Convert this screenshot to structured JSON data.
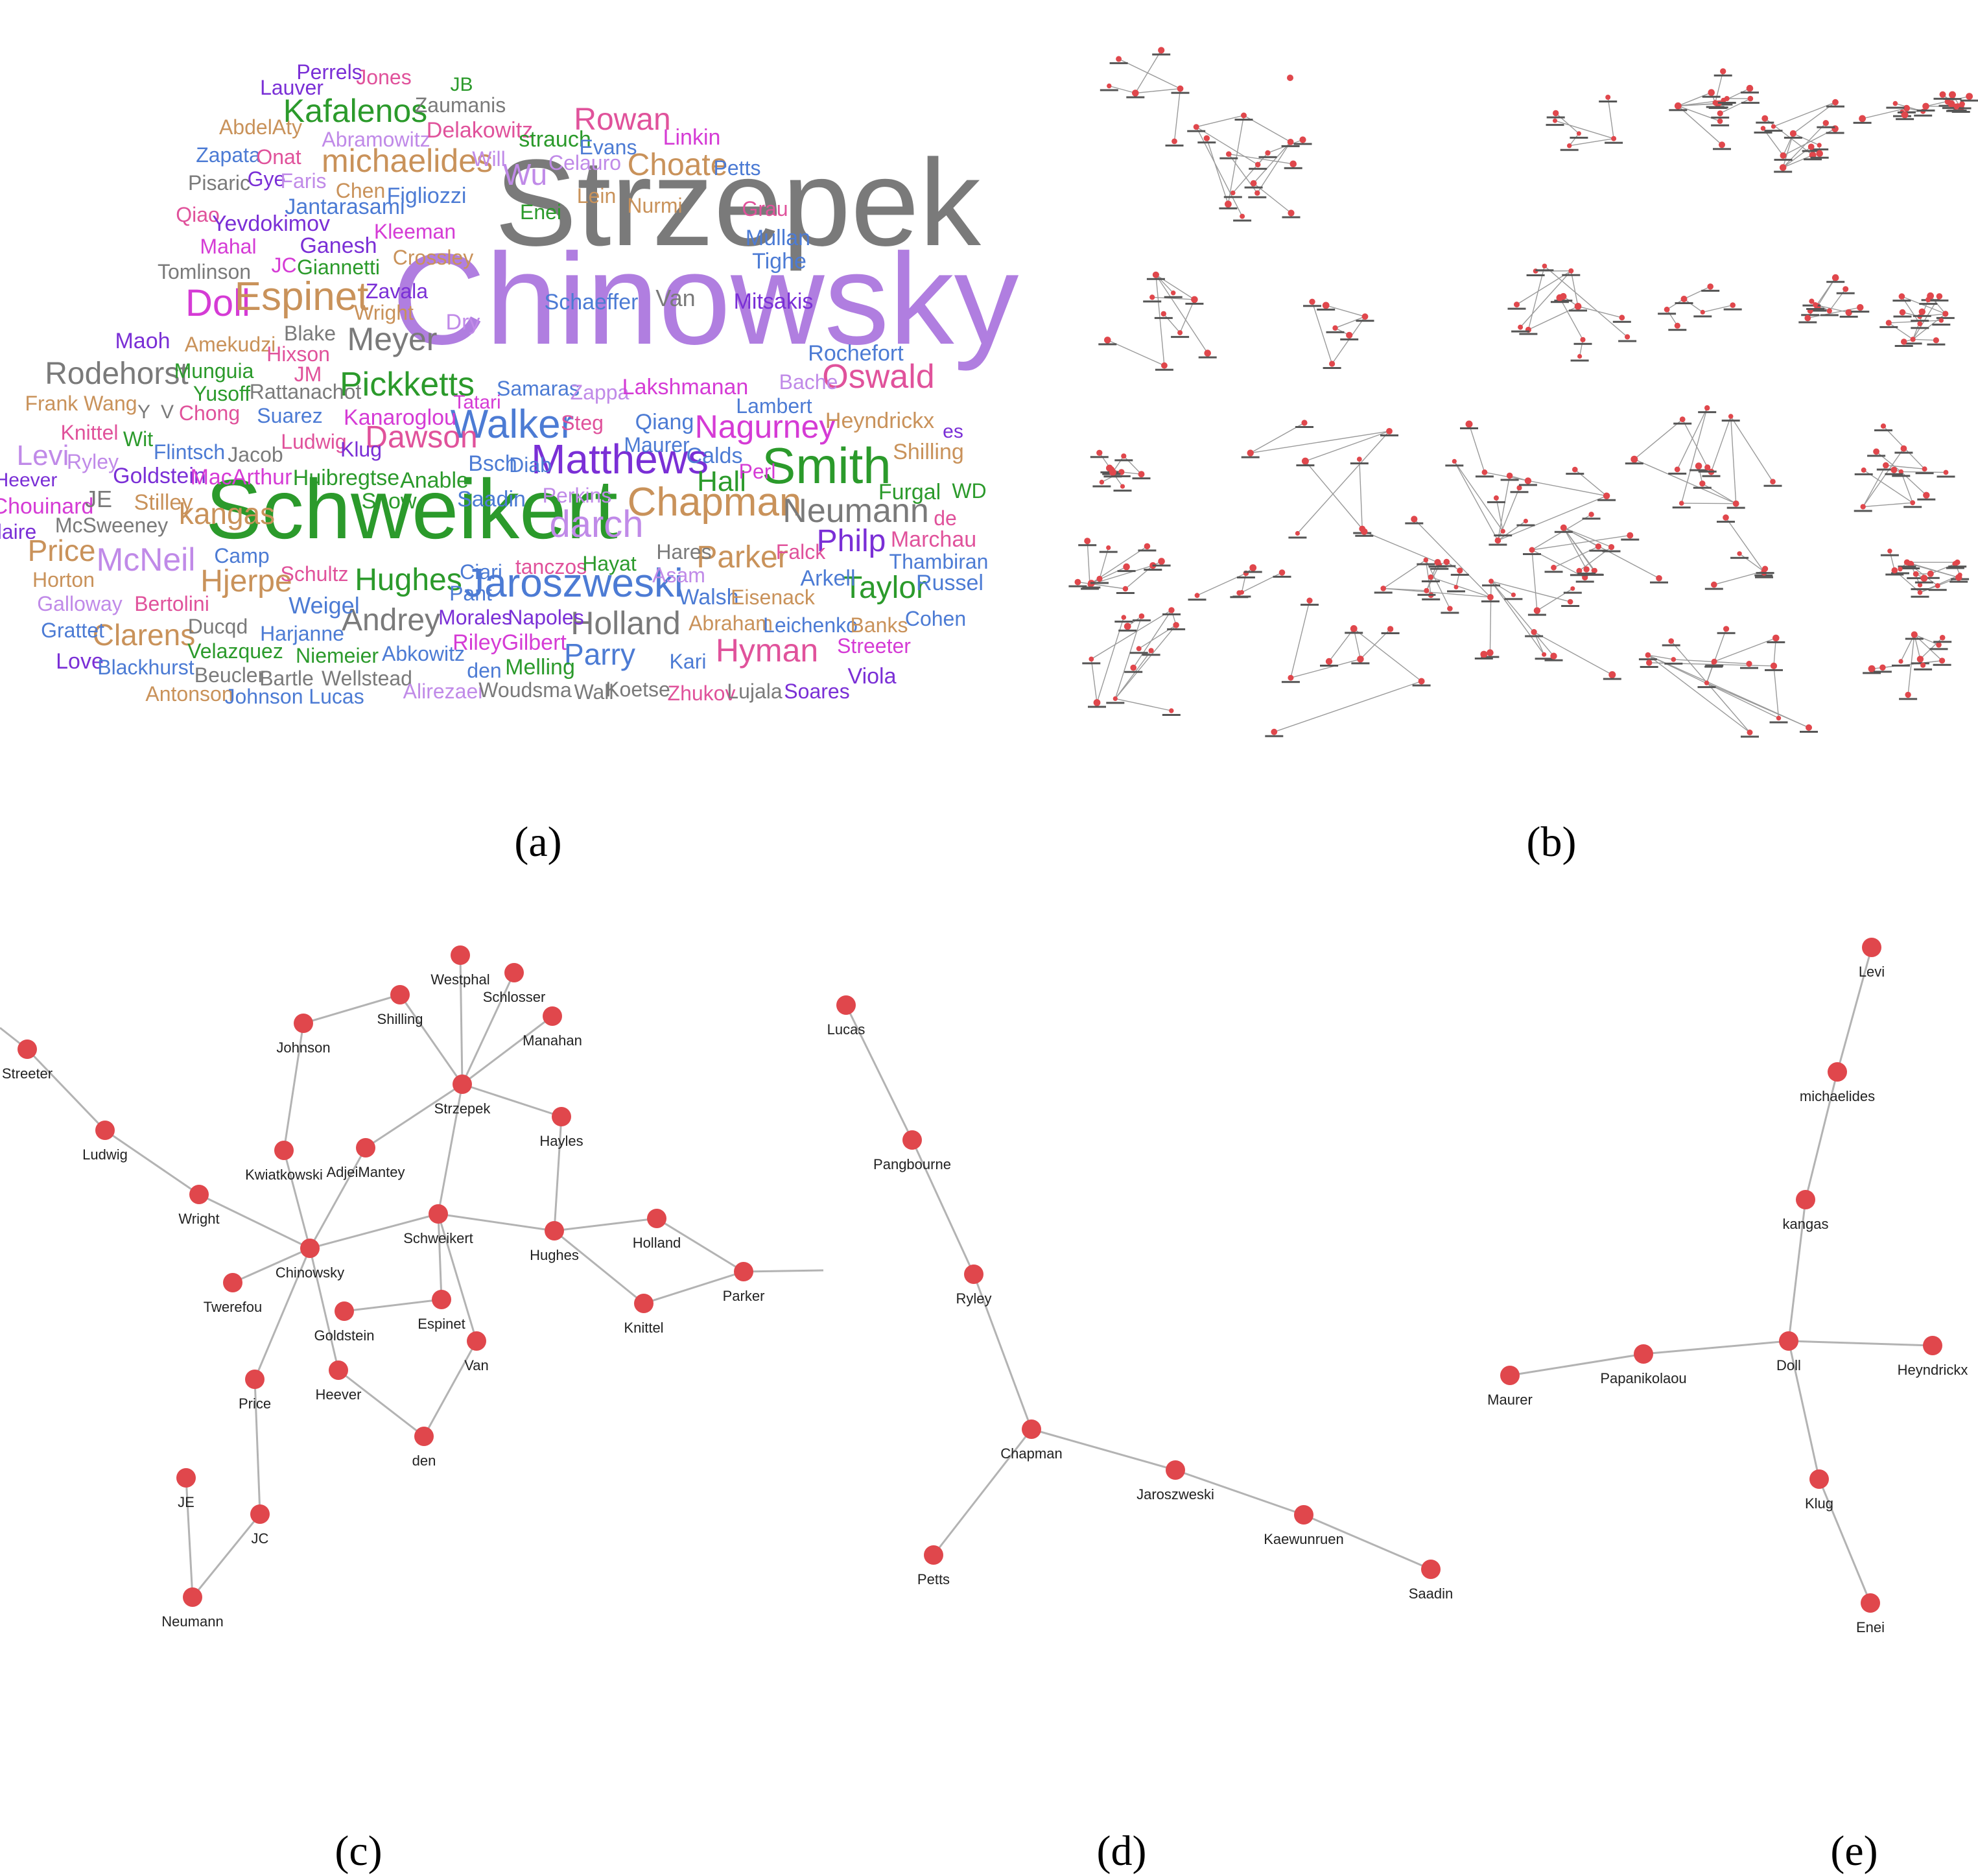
{
  "captions": {
    "a": "(a)",
    "b": "(b)",
    "c": "(c)",
    "d": "(d)",
    "e": "(e)"
  },
  "colors": {
    "node": "#e0474c",
    "edge": "#b3b3b3",
    "label": "#222222"
  },
  "word_cloud": {
    "palette": {
      "gray": "#7a7a7a",
      "violet": "#b07ee0",
      "green": "#2b9a2b",
      "magenta": "#d53bd5",
      "tan": "#c9925a",
      "blue": "#4c7bd4",
      "purple": "#7a2fd6",
      "pink": "#e0529b",
      "lavender": "#c08ae8"
    },
    "words": [
      {
        "t": "Strzepek",
        "c": "gray",
        "s": 1.0
      },
      {
        "t": "Chinowsky",
        "c": "violet",
        "s": 1.0
      },
      {
        "t": "Schweikert",
        "c": "green",
        "s": 1.0
      },
      {
        "t": "Matthews",
        "c": "purple",
        "s": 1
      },
      {
        "t": "Smith",
        "c": "green",
        "s": 1
      },
      {
        "t": "Walker",
        "c": "blue",
        "s": 1
      },
      {
        "t": "Jaroszweski",
        "c": "blue",
        "s": 1
      },
      {
        "t": "Chapman",
        "c": "tan",
        "s": 1
      },
      {
        "t": "Neumann",
        "c": "gray",
        "s": 1
      },
      {
        "t": "darch",
        "c": "lavender",
        "s": 1
      },
      {
        "t": "Doll",
        "c": "magenta",
        "s": 1
      },
      {
        "t": "Espinet",
        "c": "tan",
        "s": 1
      },
      {
        "t": "Pickketts",
        "c": "green",
        "s": 1
      },
      {
        "t": "Dawson",
        "c": "pink",
        "s": 1
      },
      {
        "t": "Nagurney",
        "c": "magenta",
        "s": 1
      },
      {
        "t": "Oswald",
        "c": "pink",
        "s": 1
      },
      {
        "t": "Meyer",
        "c": "gray",
        "s": 1
      },
      {
        "t": "michaelides",
        "c": "tan",
        "s": 1
      },
      {
        "t": "Kafalenos",
        "c": "green",
        "s": 1
      },
      {
        "t": "Rowan",
        "c": "pink",
        "s": 1
      },
      {
        "t": "Choate",
        "c": "tan",
        "s": 1
      },
      {
        "t": "Rodehorst",
        "c": "gray",
        "s": 1
      },
      {
        "t": "Hjerpe",
        "c": "tan",
        "s": 1
      },
      {
        "t": "Hughes",
        "c": "green",
        "s": 1
      },
      {
        "t": "Philp",
        "c": "purple",
        "s": 1
      },
      {
        "t": "Parker",
        "c": "tan",
        "s": 1
      },
      {
        "t": "Taylor",
        "c": "green",
        "s": 1
      },
      {
        "t": "Holland",
        "c": "gray",
        "s": 1
      },
      {
        "t": "Hyman",
        "c": "pink",
        "s": 1
      },
      {
        "t": "Parry",
        "c": "blue",
        "s": 1
      },
      {
        "t": "Andrey",
        "c": "gray",
        "s": 1
      },
      {
        "t": "McNeil",
        "c": "lavender",
        "s": 1
      },
      {
        "t": "Clarens",
        "c": "tan",
        "s": 1
      },
      {
        "t": "kangas",
        "c": "tan",
        "s": 1
      },
      {
        "t": "Price",
        "c": "tan",
        "s": 1
      },
      {
        "t": "Wu",
        "c": "lavender",
        "s": 1
      },
      {
        "t": "Levi",
        "c": "lavender",
        "s": 1
      },
      {
        "t": "Hall",
        "c": "green",
        "s": 1
      },
      {
        "t": "Van",
        "c": "gray",
        "s": 1
      },
      {
        "t": "Jones",
        "c": "pink",
        "s": 1
      },
      {
        "t": "Perrels",
        "c": "purple",
        "s": 1
      },
      {
        "t": "Lauver",
        "c": "purple",
        "s": 1
      },
      {
        "t": "JB",
        "c": "green",
        "s": 1
      },
      {
        "t": "Zaumanis",
        "c": "gray",
        "s": 1
      },
      {
        "t": "AbdelAty",
        "c": "tan",
        "s": 1
      },
      {
        "t": "Abramowitz",
        "c": "lavender",
        "s": 1
      },
      {
        "t": "Delakowitz",
        "c": "pink",
        "s": 1
      },
      {
        "t": "strauch",
        "c": "green",
        "s": 1
      },
      {
        "t": "Evans",
        "c": "blue",
        "s": 1
      },
      {
        "t": "Linkin",
        "c": "magenta",
        "s": 1
      },
      {
        "t": "Zapata",
        "c": "blue",
        "s": 1
      },
      {
        "t": "Onat",
        "c": "pink",
        "s": 1
      },
      {
        "t": "Will",
        "c": "lavender",
        "s": 1
      },
      {
        "t": "Celauro",
        "c": "lavender",
        "s": 1
      },
      {
        "t": "Petts",
        "c": "blue",
        "s": 1
      },
      {
        "t": "Pisaric",
        "c": "gray",
        "s": 1
      },
      {
        "t": "Gye",
        "c": "purple",
        "s": 1
      },
      {
        "t": "Faris",
        "c": "lavender",
        "s": 1
      },
      {
        "t": "Chen",
        "c": "tan",
        "s": 1
      },
      {
        "t": "Figliozzi",
        "c": "blue",
        "s": 1
      },
      {
        "t": "Lein",
        "c": "tan",
        "s": 1
      },
      {
        "t": "Nurmi",
        "c": "tan",
        "s": 1
      },
      {
        "t": "Grau",
        "c": "pink",
        "s": 1
      },
      {
        "t": "Qiao",
        "c": "pink",
        "s": 1
      },
      {
        "t": "Yevdokimov",
        "c": "purple",
        "s": 1
      },
      {
        "t": "Jantarasami",
        "c": "blue",
        "s": 1
      },
      {
        "t": "Enei",
        "c": "green",
        "s": 1
      },
      {
        "t": "Mullan",
        "c": "blue",
        "s": 1
      },
      {
        "t": "Mahal",
        "c": "magenta",
        "s": 1
      },
      {
        "t": "Ganesh",
        "c": "purple",
        "s": 1
      },
      {
        "t": "Kleeman",
        "c": "magenta",
        "s": 1
      },
      {
        "t": "Tighe",
        "c": "blue",
        "s": 1
      },
      {
        "t": "Tomlinson",
        "c": "gray",
        "s": 1
      },
      {
        "t": "JC",
        "c": "magenta",
        "s": 1
      },
      {
        "t": "Giannetti",
        "c": "green",
        "s": 1
      },
      {
        "t": "Crossley",
        "c": "tan",
        "s": 1
      },
      {
        "t": "Zavala",
        "c": "purple",
        "s": 1
      },
      {
        "t": "Wright",
        "c": "tan",
        "s": 1
      },
      {
        "t": "Schaeffer",
        "c": "blue",
        "s": 1
      },
      {
        "t": "Mitsakis",
        "c": "purple",
        "s": 1
      },
      {
        "t": "Maoh",
        "c": "purple",
        "s": 1
      },
      {
        "t": "Amekudzi",
        "c": "tan",
        "s": 1
      },
      {
        "t": "Blake",
        "c": "gray",
        "s": 1
      },
      {
        "t": "Dry",
        "c": "lavender",
        "s": 1
      },
      {
        "t": "Hixson",
        "c": "pink",
        "s": 1
      },
      {
        "t": "Rochefort",
        "c": "blue",
        "s": 1
      },
      {
        "t": "Munguia",
        "c": "green",
        "s": 1
      },
      {
        "t": "JM",
        "c": "pink",
        "s": 1
      },
      {
        "t": "Yusoff",
        "c": "green",
        "s": 1
      },
      {
        "t": "Rattanachot",
        "c": "gray",
        "s": 1
      },
      {
        "t": "Tatari",
        "c": "magenta",
        "s": 1
      },
      {
        "t": "Samaras",
        "c": "blue",
        "s": 1
      },
      {
        "t": "Zappa",
        "c": "lavender",
        "s": 1
      },
      {
        "t": "Lakshmanan",
        "c": "magenta",
        "s": 1
      },
      {
        "t": "Bache",
        "c": "lavender",
        "s": 1
      },
      {
        "t": "Frank Wang",
        "c": "tan",
        "s": 1
      },
      {
        "t": "Y",
        "c": "gray",
        "s": 1
      },
      {
        "t": "V",
        "c": "gray",
        "s": 1
      },
      {
        "t": "Chong",
        "c": "pink",
        "s": 1
      },
      {
        "t": "Suarez",
        "c": "blue",
        "s": 1
      },
      {
        "t": "Kanaroglou",
        "c": "magenta",
        "s": 1
      },
      {
        "t": "Steg",
        "c": "pink",
        "s": 1
      },
      {
        "t": "Qiang",
        "c": "blue",
        "s": 1
      },
      {
        "t": "Lambert",
        "c": "blue",
        "s": 1
      },
      {
        "t": "Heyndrickx",
        "c": "tan",
        "s": 1
      },
      {
        "t": "Knittel",
        "c": "pink",
        "s": 1
      },
      {
        "t": "Wit",
        "c": "green",
        "s": 1
      },
      {
        "t": "Flintsch",
        "c": "blue",
        "s": 1
      },
      {
        "t": "Jacob",
        "c": "gray",
        "s": 1
      },
      {
        "t": "Ludwig",
        "c": "pink",
        "s": 1
      },
      {
        "t": "Klug",
        "c": "purple",
        "s": 1
      },
      {
        "t": "Maurer",
        "c": "blue",
        "s": 1
      },
      {
        "t": "Calds",
        "c": "blue",
        "s": 1
      },
      {
        "t": "es",
        "c": "purple",
        "s": 1
      },
      {
        "t": "Shilling",
        "c": "tan",
        "s": 1
      },
      {
        "t": "Ryley",
        "c": "lavender",
        "s": 1
      },
      {
        "t": "Bsch",
        "c": "blue",
        "s": 1
      },
      {
        "t": "Diab",
        "c": "blue",
        "s": 1
      },
      {
        "t": "Perl",
        "c": "magenta",
        "s": 1
      },
      {
        "t": "Heever",
        "c": "purple",
        "s": 1
      },
      {
        "t": "Goldstein",
        "c": "purple",
        "s": 1
      },
      {
        "t": "MacArthur",
        "c": "magenta",
        "s": 1
      },
      {
        "t": "Huibregtse",
        "c": "green",
        "s": 1
      },
      {
        "t": "Anable",
        "c": "green",
        "s": 1
      },
      {
        "t": "Furgal",
        "c": "green",
        "s": 1
      },
      {
        "t": "WD",
        "c": "green",
        "s": 1
      },
      {
        "t": "Chouinard",
        "c": "magenta",
        "s": 1
      },
      {
        "t": "JE",
        "c": "gray",
        "s": 1
      },
      {
        "t": "Stilley",
        "c": "tan",
        "s": 1
      },
      {
        "t": "Snow",
        "c": "green",
        "s": 1
      },
      {
        "t": "Saadin",
        "c": "blue",
        "s": 1
      },
      {
        "t": "Perkins",
        "c": "lavender",
        "s": 1
      },
      {
        "t": "de",
        "c": "pink",
        "s": 1
      },
      {
        "t": "laire",
        "c": "purple",
        "s": 1
      },
      {
        "t": "McSweeney",
        "c": "gray",
        "s": 1
      },
      {
        "t": "Marchau",
        "c": "pink",
        "s": 1
      },
      {
        "t": "Camp",
        "c": "blue",
        "s": 1
      },
      {
        "t": "Hares",
        "c": "gray",
        "s": 1
      },
      {
        "t": "Falck",
        "c": "pink",
        "s": 1
      },
      {
        "t": "Thambiran",
        "c": "blue",
        "s": 1
      },
      {
        "t": "Horton",
        "c": "tan",
        "s": 1
      },
      {
        "t": "Schultz",
        "c": "pink",
        "s": 1
      },
      {
        "t": "Ciari",
        "c": "blue",
        "s": 1
      },
      {
        "t": "Pant",
        "c": "blue",
        "s": 1
      },
      {
        "t": "tanczos",
        "c": "pink",
        "s": 1
      },
      {
        "t": "Hayat",
        "c": "green",
        "s": 1
      },
      {
        "t": "Asam",
        "c": "lavender",
        "s": 1
      },
      {
        "t": "Arkell",
        "c": "blue",
        "s": 1
      },
      {
        "t": "Russel",
        "c": "blue",
        "s": 1
      },
      {
        "t": "Galloway",
        "c": "lavender",
        "s": 1
      },
      {
        "t": "Bertolini",
        "c": "pink",
        "s": 1
      },
      {
        "t": "Weigel",
        "c": "blue",
        "s": 1
      },
      {
        "t": "Walsh",
        "c": "blue",
        "s": 1
      },
      {
        "t": "Eisenack",
        "c": "tan",
        "s": 1
      },
      {
        "t": "Grattet",
        "c": "blue",
        "s": 1
      },
      {
        "t": "Ducqd",
        "c": "gray",
        "s": 1
      },
      {
        "t": "Morales",
        "c": "purple",
        "s": 1
      },
      {
        "t": "Napoles",
        "c": "purple",
        "s": 1
      },
      {
        "t": "Abraham",
        "c": "tan",
        "s": 1
      },
      {
        "t": "Leichenko",
        "c": "blue",
        "s": 1
      },
      {
        "t": "Banks",
        "c": "tan",
        "s": 1
      },
      {
        "t": "Cohen",
        "c": "blue",
        "s": 1
      },
      {
        "t": "Love",
        "c": "purple",
        "s": 1
      },
      {
        "t": "Blackhurst",
        "c": "blue",
        "s": 1
      },
      {
        "t": "Velazquez",
        "c": "green",
        "s": 1
      },
      {
        "t": "Harjanne",
        "c": "blue",
        "s": 1
      },
      {
        "t": "Niemeier",
        "c": "green",
        "s": 1
      },
      {
        "t": "Abkowitz",
        "c": "blue",
        "s": 1
      },
      {
        "t": "RileyGilbert",
        "c": "magenta",
        "s": 1
      },
      {
        "t": "Kari",
        "c": "blue",
        "s": 1
      },
      {
        "t": "Streeter",
        "c": "magenta",
        "s": 1
      },
      {
        "t": "Beucler",
        "c": "gray",
        "s": 1
      },
      {
        "t": "Bartle",
        "c": "gray",
        "s": 1
      },
      {
        "t": "Wellstead",
        "c": "gray",
        "s": 1
      },
      {
        "t": "den",
        "c": "blue",
        "s": 1
      },
      {
        "t": "Melling",
        "c": "green",
        "s": 1
      },
      {
        "t": "Viola",
        "c": "purple",
        "s": 1
      },
      {
        "t": "Antonson",
        "c": "tan",
        "s": 1
      },
      {
        "t": "Johnson",
        "c": "blue",
        "s": 1
      },
      {
        "t": "Lucas",
        "c": "blue",
        "s": 1
      },
      {
        "t": "Alirezaei",
        "c": "lavender",
        "s": 1
      },
      {
        "t": "Woudsma",
        "c": "gray",
        "s": 1
      },
      {
        "t": "Wall",
        "c": "gray",
        "s": 1
      },
      {
        "t": "Koetse",
        "c": "gray",
        "s": 1
      },
      {
        "t": "Zhukov",
        "c": "pink",
        "s": 1
      },
      {
        "t": "Lujala",
        "c": "gray",
        "s": 1
      },
      {
        "t": "Soares",
        "c": "purple",
        "s": 1
      }
    ]
  },
  "graph_c": {
    "nodes": [
      "Streeter",
      "Ludwig",
      "Wright",
      "Johnson",
      "Shilling",
      "Westphal",
      "Schlosser",
      "Manahan",
      "Strzepek",
      "Hayles",
      "Kwiatkowski",
      "AdjeiMantey",
      "Chinowsky",
      "Twerefou",
      "Schweikert",
      "Hughes",
      "Holland",
      "Parker",
      "Knittel",
      "Goldstein",
      "Espinet",
      "Van",
      "Heever",
      "den",
      "Price",
      "JE",
      "JC",
      "Neumann"
    ],
    "edges": [
      [
        "Streeter",
        "Ludwig"
      ],
      [
        "Ludwig",
        "Wright"
      ],
      [
        "Wright",
        "Chinowsky"
      ],
      [
        "Johnson",
        "Shilling"
      ],
      [
        "Johnson",
        "Kwiatkowski"
      ],
      [
        "Shilling",
        "Strzepek"
      ],
      [
        "Westphal",
        "Strzepek"
      ],
      [
        "Schlosser",
        "Strzepek"
      ],
      [
        "Manahan",
        "Strzepek"
      ],
      [
        "Strzepek",
        "Hayles"
      ],
      [
        "Strzepek",
        "AdjeiMantey"
      ],
      [
        "Strzepek",
        "Schweikert"
      ],
      [
        "Kwiatkowski",
        "Chinowsky"
      ],
      [
        "AdjeiMantey",
        "Chinowsky"
      ],
      [
        "Chinowsky",
        "Twerefou"
      ],
      [
        "Chinowsky",
        "Schweikert"
      ],
      [
        "Chinowsky",
        "Price"
      ],
      [
        "Chinowsky",
        "Heever"
      ],
      [
        "Schweikert",
        "Hughes"
      ],
      [
        "Schweikert",
        "Espinet"
      ],
      [
        "Schweikert",
        "Van"
      ],
      [
        "Hughes",
        "Holland"
      ],
      [
        "Hughes",
        "Knittel"
      ],
      [
        "Hughes",
        "Hayles"
      ],
      [
        "Knittel",
        "Parker"
      ],
      [
        "Holland",
        "Parker"
      ],
      [
        "Goldstein",
        "Espinet"
      ],
      [
        "Van",
        "den"
      ],
      [
        "Heever",
        "den"
      ],
      [
        "Price",
        "JC"
      ],
      [
        "JC",
        "Neumann"
      ],
      [
        "JE",
        "Neumann"
      ]
    ]
  },
  "graph_d": {
    "nodes": [
      "Lucas",
      "Pangbourne",
      "Ryley",
      "Chapman",
      "Petts",
      "Jaroszweski",
      "Kaewunruen",
      "Saadin"
    ],
    "edges": [
      [
        "Lucas",
        "Pangbourne"
      ],
      [
        "Pangbourne",
        "Ryley"
      ],
      [
        "Ryley",
        "Chapman"
      ],
      [
        "Chapman",
        "Petts"
      ],
      [
        "Chapman",
        "Jaroszweski"
      ],
      [
        "Jaroszweski",
        "Kaewunruen"
      ],
      [
        "Kaewunruen",
        "Saadin"
      ]
    ]
  },
  "graph_e": {
    "nodes": [
      "Levi",
      "michaelides",
      "kangas",
      "Doll",
      "Maurer",
      "Papanikolaou",
      "Heyndrickx",
      "Klug",
      "Enei"
    ],
    "edges": [
      [
        "Levi",
        "michaelides"
      ],
      [
        "michaelides",
        "kangas"
      ],
      [
        "kangas",
        "Doll"
      ],
      [
        "Maurer",
        "Papanikolaou"
      ],
      [
        "Papanikolaou",
        "Doll"
      ],
      [
        "Doll",
        "Heyndrickx"
      ],
      [
        "Doll",
        "Klug"
      ],
      [
        "Klug",
        "Enei"
      ]
    ]
  }
}
